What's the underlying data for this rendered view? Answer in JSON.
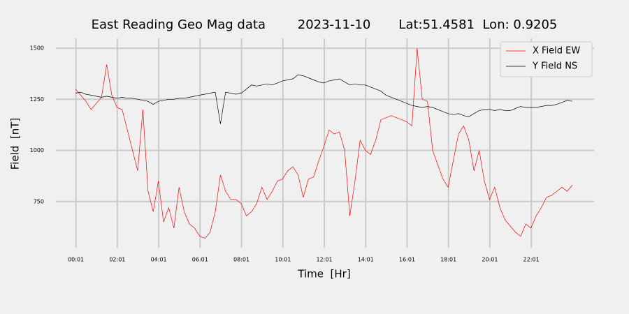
{
  "chart_data": {
    "type": "line",
    "title": "East Reading Geo Mag data        2023-11-10       Lat:51.4581  Lon: 0.9205",
    "x_label": "Time  [Hr]",
    "y_label": "Field  [nT]",
    "x": [
      0,
      0.25,
      0.5,
      0.75,
      1,
      1.25,
      1.5,
      1.75,
      2,
      2.25,
      2.5,
      2.75,
      3,
      3.25,
      3.5,
      3.75,
      4,
      4.25,
      4.5,
      4.75,
      5,
      5.25,
      5.5,
      5.75,
      6,
      6.25,
      6.5,
      6.75,
      7,
      7.25,
      7.5,
      7.75,
      8,
      8.25,
      8.5,
      8.75,
      9,
      9.25,
      9.5,
      9.75,
      10,
      10.25,
      10.5,
      10.75,
      11,
      11.25,
      11.5,
      11.75,
      12,
      12.25,
      12.5,
      12.75,
      13,
      13.25,
      13.5,
      13.75,
      14,
      14.25,
      14.5,
      14.75,
      15,
      15.25,
      15.5,
      15.75,
      16,
      16.25,
      16.5,
      16.75,
      17,
      17.25,
      17.5,
      17.75,
      18,
      18.25,
      18.5,
      18.75,
      19,
      19.25,
      19.5,
      19.75,
      20,
      20.25,
      20.5,
      20.75,
      21,
      21.25,
      21.5,
      21.75,
      22,
      22.25,
      22.5,
      22.75,
      23,
      23.25,
      23.5,
      23.75,
      24
    ],
    "series": [
      {
        "name": "X Field EW",
        "color": "#ff0000",
        "values": [
          1300,
          1270,
          1240,
          1200,
          1230,
          1260,
          1420,
          1270,
          1210,
          1200,
          1100,
          1000,
          900,
          1200,
          800,
          700,
          850,
          650,
          720,
          620,
          820,
          700,
          640,
          620,
          580,
          570,
          600,
          700,
          880,
          800,
          760,
          760,
          740,
          680,
          700,
          740,
          820,
          760,
          800,
          850,
          860,
          900,
          920,
          880,
          770,
          860,
          870,
          950,
          1020,
          1100,
          1080,
          1090,
          1000,
          680,
          850,
          1050,
          1000,
          980,
          1050,
          1150,
          1160,
          1170,
          1160,
          1150,
          1140,
          1120,
          1500,
          1250,
          1240,
          1000,
          930,
          860,
          820,
          950,
          1080,
          1120,
          1050,
          900,
          1000,
          850,
          760,
          820,
          720,
          660,
          630,
          600,
          580,
          640,
          620,
          680,
          720,
          770,
          780,
          800,
          820,
          800,
          830
        ]
      },
      {
        "name": "Y Field NS",
        "color": "#000000",
        "values": [
          1280,
          1285,
          1275,
          1270,
          1265,
          1260,
          1265,
          1260,
          1255,
          1260,
          1255,
          1255,
          1250,
          1245,
          1240,
          1225,
          1240,
          1245,
          1250,
          1250,
          1255,
          1255,
          1260,
          1265,
          1270,
          1275,
          1280,
          1285,
          1130,
          1285,
          1280,
          1275,
          1280,
          1300,
          1320,
          1315,
          1320,
          1325,
          1320,
          1330,
          1340,
          1345,
          1350,
          1370,
          1365,
          1355,
          1345,
          1335,
          1330,
          1340,
          1345,
          1350,
          1335,
          1320,
          1325,
          1320,
          1320,
          1310,
          1300,
          1290,
          1270,
          1260,
          1250,
          1240,
          1230,
          1220,
          1215,
          1210,
          1215,
          1210,
          1200,
          1190,
          1180,
          1175,
          1180,
          1170,
          1165,
          1180,
          1195,
          1200,
          1200,
          1195,
          1200,
          1195,
          1195,
          1205,
          1215,
          1210,
          1210,
          1210,
          1215,
          1220,
          1220,
          1225,
          1235,
          1245,
          1240
        ]
      }
    ],
    "xlim": [
      -0.95,
      25.05
    ],
    "xticks": [
      {
        "value": 0.017,
        "label": "00:01"
      },
      {
        "value": 2.017,
        "label": "02:01"
      },
      {
        "value": 4.017,
        "label": "04:01"
      },
      {
        "value": 6.017,
        "label": "06:01"
      },
      {
        "value": 8.017,
        "label": "08:01"
      },
      {
        "value": 10.017,
        "label": "10:01"
      },
      {
        "value": 12.017,
        "label": "12:01"
      },
      {
        "value": 14.017,
        "label": "14:01"
      },
      {
        "value": 16.017,
        "label": "16:01"
      },
      {
        "value": 18.017,
        "label": "18:01"
      },
      {
        "value": 20.017,
        "label": "20:01"
      },
      {
        "value": 22.017,
        "label": "22:01"
      }
    ],
    "ylim": [
      524,
      1548
    ],
    "yticks": [
      750,
      1000,
      1250,
      1500
    ],
    "grid": true,
    "legend": "upper right"
  }
}
